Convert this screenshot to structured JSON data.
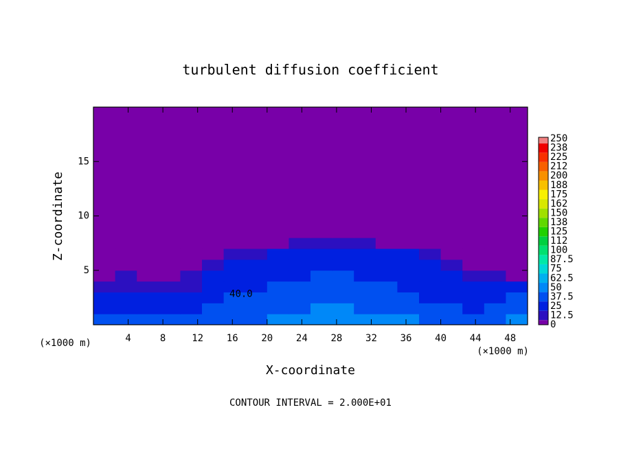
{
  "chart_data": {
    "type": "heatmap",
    "title": "turbulent diffusion coefficient",
    "xlabel": "X-coordinate",
    "ylabel": "Z-coordinate",
    "x_unit_labels": [
      "(×1000 m)",
      "(×1000 m)"
    ],
    "footnote": "CONTOUR INTERVAL = 2.000E+01",
    "annotations": [
      {
        "text": "40.0",
        "x": 17,
        "y": 2.8
      }
    ],
    "xlim": [
      0,
      50
    ],
    "ylim": [
      0,
      20
    ],
    "xticks": [
      4,
      8,
      12,
      16,
      20,
      24,
      28,
      32,
      36,
      40,
      44,
      48
    ],
    "yticks": [
      5,
      10,
      15
    ],
    "x_edges": [
      0,
      2.5,
      5,
      7.5,
      10,
      12.5,
      15,
      17.5,
      20,
      22.5,
      25,
      27.5,
      30,
      32.5,
      35,
      37.5,
      40,
      42.5,
      45,
      47.5,
      50
    ],
    "y_edges": [
      0,
      1,
      2,
      3,
      4,
      5,
      6,
      7,
      8,
      20
    ],
    "z": [
      [
        40,
        42,
        40,
        38,
        40,
        45,
        45,
        48,
        55,
        55,
        58,
        60,
        55,
        52,
        50,
        48,
        45,
        45,
        42,
        50
      ],
      [
        35,
        32,
        30,
        30,
        32,
        38,
        40,
        42,
        45,
        48,
        50,
        52,
        48,
        45,
        42,
        40,
        38,
        35,
        38,
        45
      ],
      [
        28,
        30,
        26,
        25,
        28,
        35,
        38,
        40,
        42,
        45,
        45,
        45,
        42,
        40,
        38,
        35,
        32,
        30,
        35,
        38
      ],
      [
        20,
        22,
        18,
        15,
        20,
        30,
        35,
        35,
        38,
        40,
        40,
        42,
        40,
        38,
        35,
        32,
        30,
        25,
        28,
        30
      ],
      [
        12,
        15,
        10,
        8,
        15,
        25,
        30,
        32,
        35,
        35,
        38,
        38,
        35,
        35,
        32,
        30,
        25,
        20,
        15,
        12
      ],
      [
        5,
        8,
        5,
        5,
        10,
        18,
        25,
        28,
        30,
        30,
        32,
        32,
        30,
        30,
        28,
        25,
        20,
        12,
        8,
        5
      ],
      [
        0,
        0,
        0,
        0,
        2,
        5,
        15,
        22,
        25,
        25,
        28,
        28,
        28,
        25,
        25,
        20,
        10,
        5,
        0,
        0
      ],
      [
        0,
        0,
        0,
        0,
        0,
        0,
        2,
        8,
        12,
        15,
        15,
        18,
        15,
        12,
        10,
        8,
        2,
        0,
        0,
        0
      ],
      [
        0,
        0,
        0,
        0,
        0,
        0,
        0,
        0,
        0,
        0,
        0,
        2,
        0,
        0,
        0,
        0,
        0,
        0,
        0,
        0
      ]
    ],
    "levels": [
      0,
      12.5,
      25,
      37.5,
      50,
      62.5,
      75,
      87.5,
      100,
      {
        "value": 112.5,
        "label": "112"
      },
      125,
      {
        "value": 137.5,
        "label": "138"
      },
      150,
      {
        "value": 162.5,
        "label": "162"
      },
      175,
      {
        "value": 187.5,
        "label": "188"
      },
      200,
      {
        "value": 212.5,
        "label": "212"
      },
      225,
      {
        "value": 237.5,
        "label": "238"
      },
      250
    ],
    "colors": [
      "#7800a8",
      "#2c10c0",
      "#0020e0",
      "#0050f0",
      "#0088f8",
      "#00b0f0",
      "#00d8d8",
      "#00e8a8",
      "#00e070",
      "#00d040",
      "#20d000",
      "#60d800",
      "#a0e000",
      "#d8e800",
      "#f8f000",
      "#f8c000",
      "#f89000",
      "#f86000",
      "#f83000",
      "#f00000",
      "#f08080"
    ]
  }
}
